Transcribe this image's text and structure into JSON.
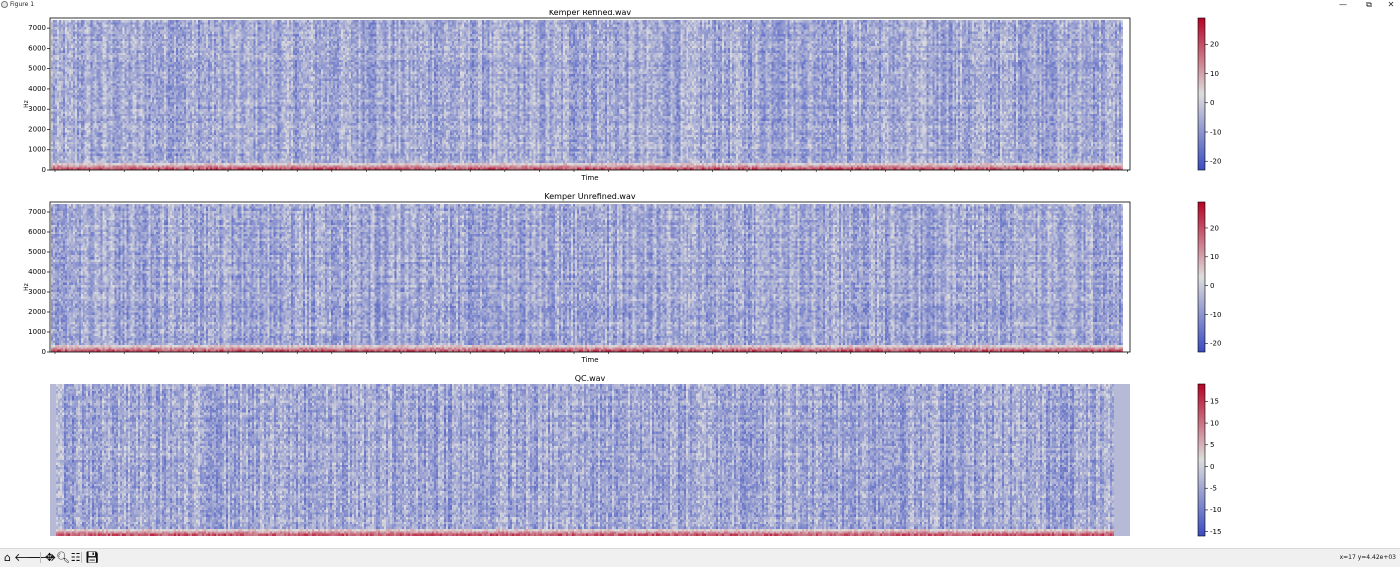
{
  "window": {
    "title": "Figure 1",
    "controls": {
      "minimize": "—",
      "maximize": "⧉",
      "close": "✕"
    }
  },
  "toolbar": {
    "buttons": [
      {
        "name": "home-icon",
        "glyph": "⌂"
      },
      {
        "name": "back-icon",
        "glyph": "🡐"
      },
      {
        "name": "forward-icon",
        "glyph": "🡒"
      },
      {
        "name": "pan-icon",
        "glyph": "✥"
      },
      {
        "name": "zoom-icon",
        "glyph": "🔍︎"
      },
      {
        "name": "configure-subplots-icon",
        "glyph": "☷"
      },
      {
        "name": "save-icon",
        "glyph": "💾︎"
      }
    ],
    "coordinates": "x=17 y=4.42e+03"
  },
  "colors": {
    "cmap_low": "#3b4cc0",
    "cmap_mid": "#dddddd",
    "cmap_high": "#b40426"
  },
  "chart_data": [
    {
      "type": "heatmap",
      "title": "Kemper Refined.wav",
      "xlabel": "Time",
      "ylabel": "Hz",
      "yticks": [
        0,
        1000,
        2000,
        3000,
        4000,
        5000,
        6000,
        7000
      ],
      "ylim": [
        0,
        7500
      ],
      "colorbar": {
        "ticks": [
          -20,
          -10,
          0,
          10,
          20
        ],
        "range": [
          -23,
          29
        ]
      }
    },
    {
      "type": "heatmap",
      "title": "Kemper Unrefined.wav",
      "xlabel": "Time",
      "ylabel": "Hz",
      "yticks": [
        0,
        1000,
        2000,
        3000,
        4000,
        5000,
        6000,
        7000
      ],
      "ylim": [
        0,
        7500
      ],
      "colorbar": {
        "ticks": [
          -20,
          -10,
          0,
          10,
          20
        ],
        "range": [
          -23,
          29
        ]
      }
    },
    {
      "type": "heatmap",
      "title": "QC.wav",
      "xlabel": "",
      "ylabel": "",
      "yticks": [],
      "colorbar": {
        "ticks": [
          -15,
          -10,
          -5,
          0,
          5,
          10,
          15
        ],
        "range": [
          -16,
          19
        ]
      }
    }
  ]
}
